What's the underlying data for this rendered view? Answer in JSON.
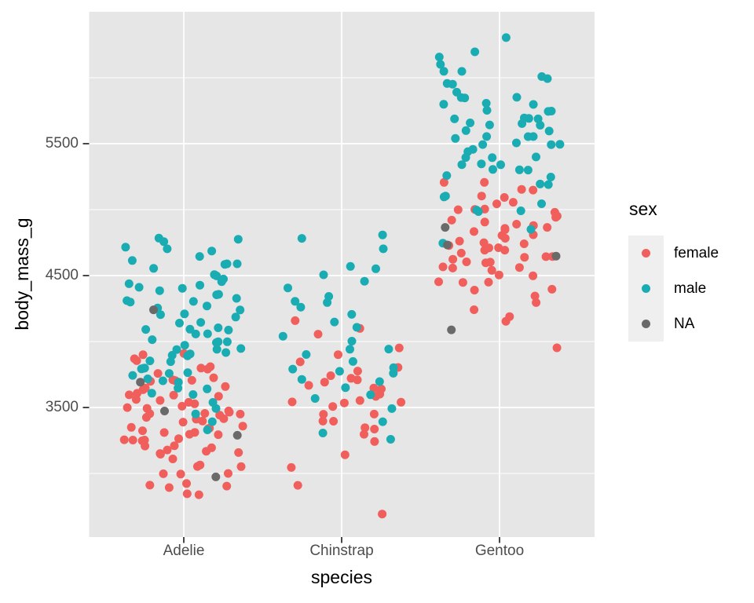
{
  "colors": {
    "panel_bg": "#E6E6E6",
    "grid": "#FFFFFF",
    "tick_mark": "#333333",
    "tick_label": "#4D4D4D",
    "legend_key_bg": "#EFEFEF",
    "sex": {
      "female": "#F05F5C",
      "male": "#1AACB3",
      "NA": "#6A6A6A"
    }
  },
  "axes": {
    "x": {
      "title": "species",
      "categories": [
        "Adelie",
        "Chinstrap",
        "Gentoo"
      ]
    },
    "y": {
      "title": "body_mass_g",
      "tick_labels": [
        "5500",
        "4500",
        "3500"
      ]
    }
  },
  "legend": {
    "title": "sex",
    "items": [
      {
        "label": "female",
        "color": "#F05F5C"
      },
      {
        "label": "male",
        "color": "#1AACB3"
      },
      {
        "label": "NA",
        "color": "#6A6A6A"
      }
    ]
  },
  "chart_data": {
    "type": "scatter",
    "subtype": "jitter",
    "title": "",
    "xlabel": "species",
    "ylabel": "body_mass_g",
    "categories": [
      "Adelie",
      "Chinstrap",
      "Gentoo"
    ],
    "y_major": [
      3500,
      4500,
      5500
    ],
    "y_minor": [
      3000,
      4000,
      5000,
      6000
    ],
    "ylim": [
      2520,
      6480
    ],
    "grid": "on",
    "legend_position": "right",
    "series": [
      {
        "species": "Adelie",
        "sex": "female",
        "values": [
          2850,
          2850,
          2900,
          2900,
          2900,
          2925,
          3000,
          3000,
          3000,
          3050,
          3050,
          3075,
          3100,
          3150,
          3150,
          3150,
          3175,
          3175,
          3200,
          3200,
          3200,
          3250,
          3250,
          3250,
          3250,
          3275,
          3300,
          3300,
          3300,
          3300,
          3325,
          3350,
          3350,
          3350,
          3350,
          3400,
          3400,
          3400,
          3425,
          3425,
          3450,
          3450,
          3450,
          3450,
          3475,
          3475,
          3500,
          3500,
          3500,
          3525,
          3550,
          3550,
          3550,
          3575,
          3600,
          3600,
          3600,
          3625,
          3650,
          3650,
          3700,
          3700,
          3700,
          3700,
          3725,
          3750,
          3800,
          3800,
          3800,
          3850,
          3875,
          3900,
          3900
        ]
      },
      {
        "species": "Adelie",
        "sex": "male",
        "values": [
          3325,
          3400,
          3450,
          3500,
          3550,
          3600,
          3600,
          3650,
          3650,
          3700,
          3700,
          3725,
          3750,
          3750,
          3775,
          3800,
          3800,
          3800,
          3850,
          3850,
          3900,
          3900,
          3900,
          3925,
          3950,
          3950,
          3950,
          3975,
          4000,
          4000,
          4000,
          4025,
          4050,
          4050,
          4075,
          4100,
          4100,
          4100,
          4150,
          4150,
          4175,
          4200,
          4200,
          4250,
          4250,
          4275,
          4300,
          4300,
          4300,
          4325,
          4350,
          4350,
          4375,
          4400,
          4400,
          4425,
          4450,
          4450,
          4475,
          4500,
          4500,
          4550,
          4575,
          4600,
          4600,
          4625,
          4650,
          4675,
          4700,
          4725,
          4750,
          4775,
          4775
        ]
      },
      {
        "species": "Adelie",
        "sex": "NA",
        "values": [
          2975,
          3300,
          3475,
          3700,
          4250
        ]
      },
      {
        "species": "Chinstrap",
        "sex": "female",
        "values": [
          2700,
          2900,
          3050,
          3150,
          3250,
          3300,
          3325,
          3350,
          3400,
          3400,
          3450,
          3450,
          3500,
          3525,
          3550,
          3550,
          3550,
          3575,
          3600,
          3650,
          3650,
          3675,
          3700,
          3700,
          3725,
          3750,
          3775,
          3800,
          3850,
          3900,
          3950,
          4050,
          4100,
          4150
        ]
      },
      {
        "species": "Chinstrap",
        "sex": "male",
        "values": [
          3250,
          3300,
          3400,
          3500,
          3575,
          3600,
          3650,
          3700,
          3725,
          3750,
          3775,
          3800,
          3800,
          3850,
          3900,
          3950,
          3950,
          4000,
          4050,
          4100,
          4150,
          4200,
          4250,
          4300,
          4300,
          4350,
          4400,
          4450,
          4500,
          4550,
          4575,
          4700,
          4775,
          4800
        ]
      },
      {
        "species": "Gentoo",
        "sex": "female",
        "values": [
          3950,
          4150,
          4200,
          4250,
          4300,
          4350,
          4400,
          4400,
          4450,
          4450,
          4450,
          4500,
          4500,
          4550,
          4550,
          4550,
          4575,
          4600,
          4600,
          4600,
          4625,
          4650,
          4650,
          4650,
          4675,
          4700,
          4700,
          4700,
          4700,
          4725,
          4750,
          4750,
          4750,
          4775,
          4800,
          4800,
          4825,
          4850,
          4850,
          4875,
          4875,
          4900,
          4900,
          4925,
          4950,
          4950,
          4975,
          5000,
          5000,
          5000,
          5050,
          5050,
          5100,
          5100,
          5150,
          5150,
          5200,
          5200
        ]
      },
      {
        "species": "Gentoo",
        "sex": "male",
        "values": [
          4750,
          4850,
          4975,
          5000,
          5000,
          5050,
          5100,
          5100,
          5200,
          5200,
          5250,
          5250,
          5300,
          5300,
          5300,
          5350,
          5350,
          5350,
          5400,
          5400,
          5400,
          5450,
          5450,
          5500,
          5500,
          5500,
          5500,
          5550,
          5550,
          5550,
          5550,
          5600,
          5600,
          5650,
          5650,
          5650,
          5650,
          5700,
          5700,
          5700,
          5700,
          5750,
          5750,
          5750,
          5800,
          5800,
          5800,
          5850,
          5850,
          5850,
          5900,
          5950,
          5950,
          6000,
          6000,
          6050,
          6050,
          6100,
          6150,
          6200,
          6300
        ]
      },
      {
        "species": "Gentoo",
        "sex": "NA",
        "values": [
          4100,
          4650,
          4725,
          4875
        ]
      }
    ]
  }
}
